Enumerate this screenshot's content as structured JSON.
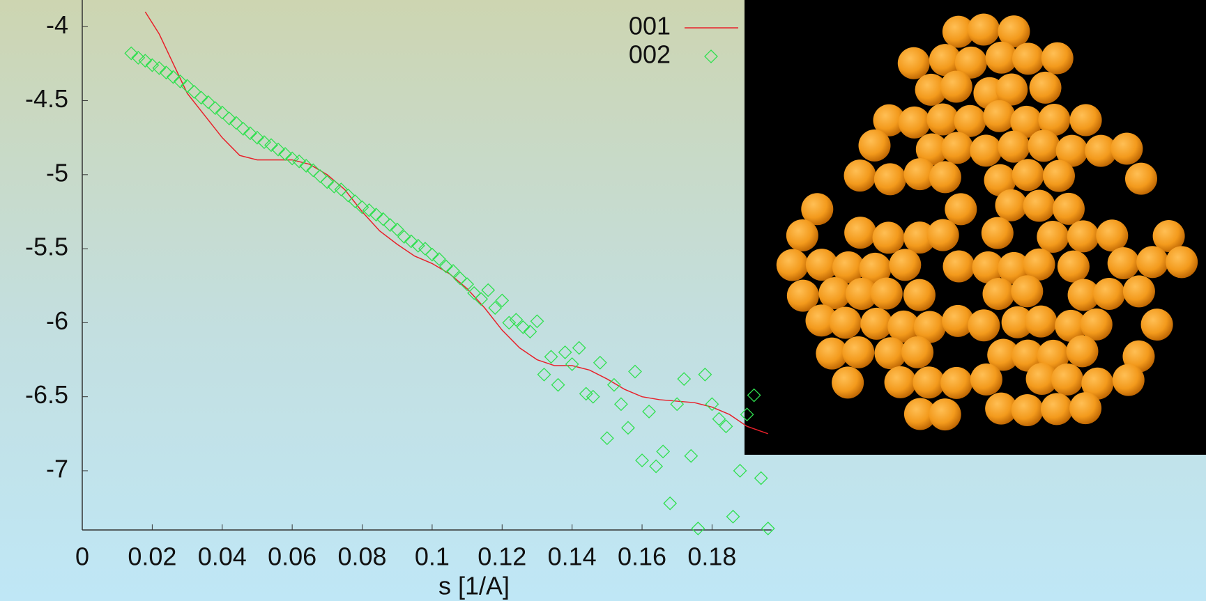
{
  "chart_data": {
    "type": "scatter",
    "xlabel": "s [1/A]",
    "xlim": [
      0,
      0.197
    ],
    "ylim": [
      -7.4,
      -3.82
    ],
    "xticks": [
      0,
      0.02,
      0.04,
      0.06,
      0.08,
      0.1,
      0.12,
      0.14,
      0.16,
      0.18
    ],
    "yticks": [
      -4,
      -4.5,
      -5,
      -5.5,
      -6,
      -6.5,
      -7
    ],
    "grid": false,
    "legend": "top-right",
    "series": [
      {
        "name": "001",
        "color": "#e8202a",
        "style": "line",
        "x": [
          0.018,
          0.022,
          0.026,
          0.03,
          0.035,
          0.04,
          0.045,
          0.05,
          0.055,
          0.06,
          0.065,
          0.07,
          0.075,
          0.08,
          0.085,
          0.09,
          0.095,
          0.1,
          0.105,
          0.11,
          0.115,
          0.12,
          0.125,
          0.13,
          0.135,
          0.14,
          0.145,
          0.15,
          0.155,
          0.16,
          0.165,
          0.17,
          0.175,
          0.18,
          0.185,
          0.19,
          0.196
        ],
        "values": [
          -3.9,
          -4.05,
          -4.25,
          -4.45,
          -4.6,
          -4.75,
          -4.87,
          -4.9,
          -4.9,
          -4.9,
          -4.93,
          -5.0,
          -5.1,
          -5.25,
          -5.38,
          -5.47,
          -5.55,
          -5.6,
          -5.67,
          -5.77,
          -5.9,
          -6.05,
          -6.17,
          -6.25,
          -6.29,
          -6.29,
          -6.32,
          -6.38,
          -6.45,
          -6.5,
          -6.52,
          -6.53,
          -6.54,
          -6.57,
          -6.62,
          -6.7,
          -6.75
        ]
      },
      {
        "name": "002",
        "color": "#2fe04f",
        "style": "diamond",
        "x": [
          0.014,
          0.016,
          0.018,
          0.02,
          0.022,
          0.024,
          0.026,
          0.028,
          0.03,
          0.032,
          0.034,
          0.036,
          0.038,
          0.04,
          0.042,
          0.044,
          0.046,
          0.048,
          0.05,
          0.052,
          0.054,
          0.056,
          0.058,
          0.06,
          0.062,
          0.064,
          0.066,
          0.068,
          0.07,
          0.072,
          0.074,
          0.076,
          0.078,
          0.08,
          0.082,
          0.084,
          0.086,
          0.088,
          0.09,
          0.092,
          0.094,
          0.096,
          0.098,
          0.1,
          0.102,
          0.104,
          0.106,
          0.108,
          0.11,
          0.112,
          0.114,
          0.116,
          0.118,
          0.12,
          0.122,
          0.124,
          0.126,
          0.128,
          0.13,
          0.132,
          0.134,
          0.136,
          0.138,
          0.14,
          0.142,
          0.144,
          0.146,
          0.148,
          0.15,
          0.152,
          0.154,
          0.156,
          0.158,
          0.16,
          0.162,
          0.164,
          0.166,
          0.168,
          0.17,
          0.172,
          0.174,
          0.176,
          0.178,
          0.18,
          0.182,
          0.184,
          0.186,
          0.188,
          0.19,
          0.192,
          0.194,
          0.196
        ],
        "values": [
          -4.18,
          -4.21,
          -4.23,
          -4.26,
          -4.28,
          -4.31,
          -4.34,
          -4.37,
          -4.4,
          -4.44,
          -4.48,
          -4.51,
          -4.55,
          -4.58,
          -4.62,
          -4.65,
          -4.69,
          -4.72,
          -4.75,
          -4.78,
          -4.8,
          -4.83,
          -4.86,
          -4.89,
          -4.91,
          -4.94,
          -4.97,
          -5.01,
          -5.05,
          -5.08,
          -5.1,
          -5.14,
          -5.18,
          -5.22,
          -5.24,
          -5.27,
          -5.3,
          -5.34,
          -5.37,
          -5.42,
          -5.45,
          -5.48,
          -5.5,
          -5.54,
          -5.57,
          -5.62,
          -5.65,
          -5.7,
          -5.74,
          -5.8,
          -5.84,
          -5.78,
          -5.9,
          -5.85,
          -6.0,
          -5.98,
          -6.03,
          -6.06,
          -5.99,
          -6.35,
          -6.23,
          -6.42,
          -6.2,
          -6.28,
          -6.17,
          -6.48,
          -6.5,
          -6.27,
          -6.78,
          -6.42,
          -6.55,
          -6.71,
          -6.33,
          -6.93,
          -6.6,
          -6.97,
          -6.87,
          -7.22,
          -6.55,
          -6.38,
          -6.9,
          -7.39,
          -6.35,
          -6.55,
          -6.65,
          -6.7,
          -7.31,
          -7.0,
          -6.62,
          -6.49,
          -7.05,
          -7.39
        ]
      }
    ]
  }
}
